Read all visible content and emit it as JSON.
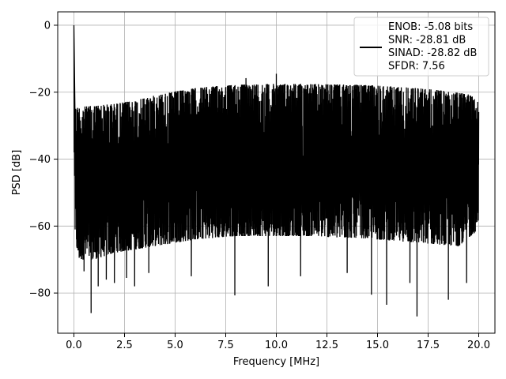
{
  "chart_data": {
    "type": "line",
    "title": "",
    "xlabel": "Frequency [MHz]",
    "ylabel": "PSD [dB]",
    "xlim": [
      -0.8,
      20.8
    ],
    "ylim": [
      -92,
      4
    ],
    "xticks": [
      0.0,
      2.5,
      5.0,
      7.5,
      10.0,
      12.5,
      15.0,
      17.5,
      20.0
    ],
    "xtick_labels": [
      "0.0",
      "2.5",
      "5.0",
      "7.5",
      "10.0",
      "12.5",
      "15.0",
      "17.5",
      "20.0"
    ],
    "yticks": [
      0,
      -20,
      -40,
      -60,
      -80
    ],
    "ytick_labels": [
      "0",
      "−20",
      "−40",
      "−60",
      "−80"
    ],
    "grid": true,
    "legend_position": "top-right",
    "series": [
      {
        "color": "#000000",
        "description": "dense noise-floor spectrum with a single 0 dB peak at DC",
        "x": [
          0.0,
          0.05,
          0.2,
          1.0,
          2.0,
          3.0,
          4.0,
          5.0,
          6.0,
          7.0,
          8.0,
          9.0,
          10.0,
          11.0,
          12.0,
          13.0,
          14.0,
          15.0,
          16.0,
          17.0,
          18.0,
          19.0,
          19.8,
          20.0
        ],
        "upper_envelope": [
          0.0,
          -24.5,
          -24.5,
          -24.0,
          -23.5,
          -22.5,
          -21.0,
          -19.8,
          -18.8,
          -18.2,
          -17.8,
          -17.6,
          -17.5,
          -17.5,
          -17.6,
          -17.7,
          -17.8,
          -18.0,
          -18.4,
          -18.8,
          -19.4,
          -20.2,
          -20.8,
          -21.0
        ],
        "lower_envelope": [
          -60.0,
          -62.0,
          -70.0,
          -70.0,
          -68.0,
          -67.0,
          -66.0,
          -65.0,
          -64.0,
          -63.5,
          -63.0,
          -63.0,
          -63.0,
          -63.0,
          -63.0,
          -63.5,
          -63.5,
          -64.0,
          -64.5,
          -65.0,
          -65.5,
          -66.0,
          -62.0,
          -60.0
        ],
        "peaks": [
          [
            0.0,
            0.0
          ],
          [
            10.0,
            -14.5
          ],
          [
            8.5,
            -15.8
          ]
        ],
        "dips": [
          [
            0.5,
            -73.5
          ],
          [
            0.85,
            -86.0
          ],
          [
            1.2,
            -78.0
          ],
          [
            1.6,
            -76.0
          ],
          [
            2.0,
            -77.0
          ],
          [
            2.6,
            -75.5
          ],
          [
            3.0,
            -78.0
          ],
          [
            3.7,
            -74.0
          ],
          [
            5.8,
            -75.0
          ],
          [
            7.95,
            -80.7
          ],
          [
            9.6,
            -78.0
          ],
          [
            11.2,
            -75.0
          ],
          [
            13.5,
            -74.0
          ],
          [
            14.7,
            -80.5
          ],
          [
            15.45,
            -83.5
          ],
          [
            16.6,
            -77.0
          ],
          [
            16.95,
            -87.0
          ],
          [
            18.5,
            -82.0
          ],
          [
            19.4,
            -77.0
          ]
        ]
      }
    ],
    "legend": {
      "lines": [
        "ENOB: -5.08 bits",
        "SNR: -28.81 dB",
        "SINAD: -28.82 dB",
        "SFDR: 7.56"
      ]
    }
  }
}
